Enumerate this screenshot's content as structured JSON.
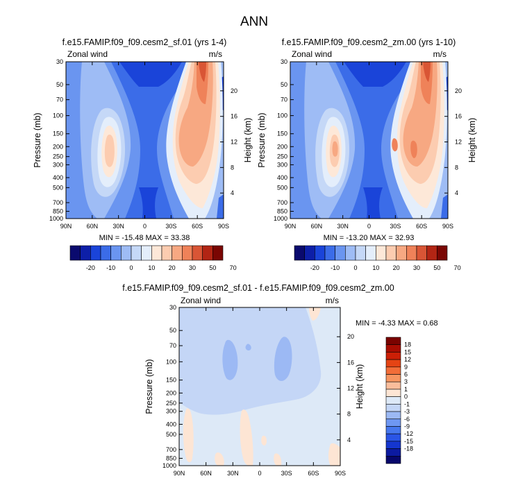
{
  "page_title": "ANN",
  "colors": {
    "diverging_scale": [
      "#0a0a6e",
      "#0d1fa8",
      "#1a44d9",
      "#3b6ce8",
      "#6a95f0",
      "#9ebcf5",
      "#c5d8f7",
      "#e4eefb",
      "#fde8d8",
      "#fcccb0",
      "#f7a882",
      "#ef8259",
      "#d95535",
      "#b22514",
      "#7a0603"
    ],
    "diff_scale": [
      "#07076b",
      "#0c1aa0",
      "#1536cf",
      "#2a55e6",
      "#4677ee",
      "#6e97f2",
      "#9cb9f4",
      "#c4d6f6",
      "#dde9f7",
      "#fde5d4",
      "#fbbd9b",
      "#f79560",
      "#f26d38",
      "#e54414",
      "#cc1f06",
      "#a80d02",
      "#7a0300"
    ]
  },
  "chart_data": [
    {
      "id": "panel1",
      "type": "contour",
      "title": "f.e15.FAMIP.f09_f09.cesm2_sf.01 (yrs 1-4)",
      "left_label": "Zonal wind",
      "right_label": "m/s",
      "ylabel": "Pressure (mb)",
      "ylabel_right": "Height (km)",
      "x_ticks": [
        "90N",
        "60N",
        "30N",
        "0",
        "30S",
        "60S",
        "90S"
      ],
      "y_ticks": [
        30,
        50,
        70,
        100,
        150,
        200,
        250,
        300,
        400,
        500,
        700,
        850,
        1000
      ],
      "height_ticks": [
        4,
        8,
        12,
        16,
        20
      ],
      "min_max": "MIN = -15.48  MAX = 33.38",
      "colorbar_labels": [
        "-20",
        "-10",
        "0",
        "10",
        "20",
        "30",
        "50",
        "70"
      ]
    },
    {
      "id": "panel2",
      "type": "contour",
      "title": "f.e15.FAMIP.f09_f09.cesm2_zm.00 (yrs 1-10)",
      "left_label": "Zonal wind",
      "right_label": "m/s",
      "ylabel": "Pressure (mb)",
      "ylabel_right": "Height (km)",
      "x_ticks": [
        "90N",
        "60N",
        "30N",
        "0",
        "30S",
        "60S",
        "90S"
      ],
      "y_ticks": [
        30,
        50,
        70,
        100,
        150,
        200,
        250,
        300,
        400,
        500,
        700,
        850,
        1000
      ],
      "height_ticks": [
        4,
        8,
        12,
        16,
        20
      ],
      "min_max": "MIN = -13.20  MAX = 32.93",
      "colorbar_labels": [
        "-20",
        "-10",
        "0",
        "10",
        "20",
        "30",
        "50",
        "70"
      ]
    },
    {
      "id": "panel3",
      "type": "contour",
      "title": "f.e15.FAMIP.f09_f09.cesm2_sf.01 - f.e15.FAMIP.f09_f09.cesm2_zm.00",
      "left_label": "Zonal wind",
      "right_label": "m/s",
      "ylabel": "Pressure (mb)",
      "ylabel_right": "Height (km)",
      "x_ticks": [
        "90N",
        "60N",
        "30N",
        "0",
        "30S",
        "60S",
        "90S"
      ],
      "y_ticks": [
        30,
        50,
        70,
        100,
        150,
        200,
        250,
        300,
        400,
        500,
        700,
        850,
        1000
      ],
      "height_ticks": [
        4,
        8,
        12,
        16,
        20
      ],
      "min_max": "MIN = -4.33  MAX =  0.68",
      "colorbar_labels": [
        "18",
        "15",
        "12",
        "9",
        "6",
        "3",
        "1",
        "0",
        "-1",
        "-3",
        "-6",
        "-9",
        "-12",
        "-15",
        "-18"
      ]
    }
  ]
}
